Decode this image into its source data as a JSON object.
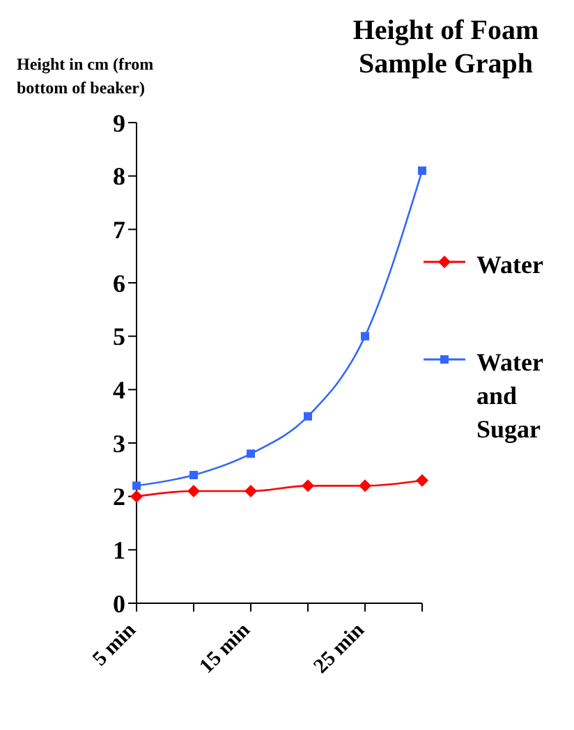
{
  "chart_data": {
    "type": "line",
    "title": "Height of Foam Sample Graph",
    "ylabel": "Height in cm (from bottom of beaker)",
    "categories": [
      "5 min",
      null,
      "15 min",
      null,
      "25 min",
      null
    ],
    "series": [
      {
        "name": "Water",
        "color": "#ff0000",
        "marker": "diamond",
        "values": [
          2.0,
          2.1,
          2.1,
          2.2,
          2.2,
          2.3
        ]
      },
      {
        "name": "Water and Sugar",
        "color": "#3366ff",
        "marker": "square",
        "values": [
          2.2,
          2.4,
          2.8,
          3.5,
          5.0,
          8.1
        ]
      }
    ],
    "ylim": [
      0,
      9
    ],
    "yticks": [
      0,
      1,
      2,
      3,
      4,
      5,
      6,
      7,
      8,
      9
    ],
    "grid": false,
    "legend": "right"
  }
}
